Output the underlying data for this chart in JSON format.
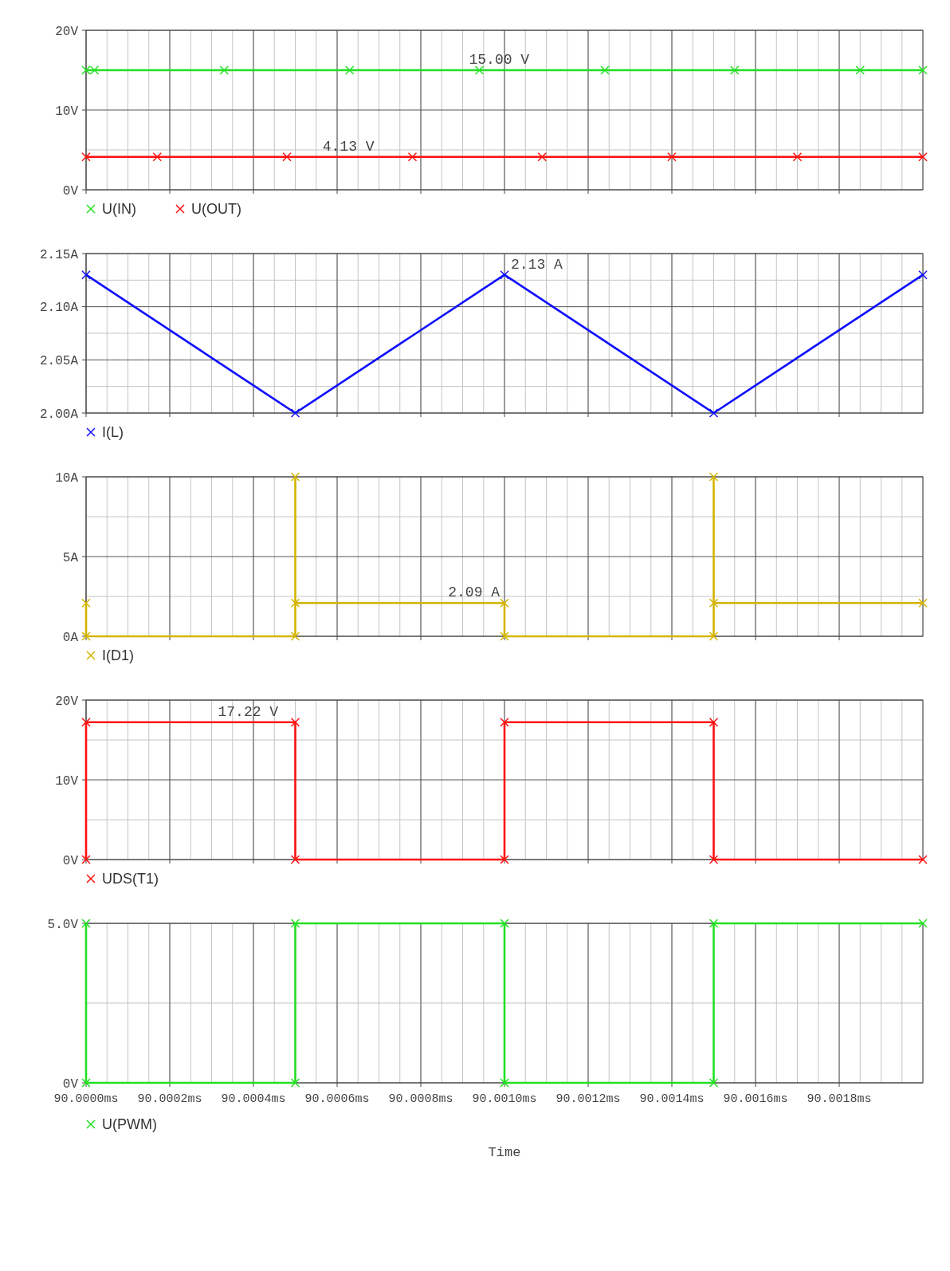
{
  "chart_data": [
    {
      "type": "line",
      "xlim": [
        90.0,
        90.002
      ],
      "xticks": [
        {
          "value": 90.0,
          "label": null
        },
        {
          "value": 90.0002,
          "label": null
        },
        {
          "value": 90.0004,
          "label": null
        },
        {
          "value": 90.0006,
          "label": null
        },
        {
          "value": 90.0008,
          "label": null
        },
        {
          "value": 90.001,
          "label": null
        },
        {
          "value": 90.0012,
          "label": null
        },
        {
          "value": 90.0014,
          "label": null
        },
        {
          "value": 90.0016,
          "label": null
        },
        {
          "value": 90.0018,
          "label": null
        }
      ],
      "ylim": [
        0,
        20
      ],
      "yticks": [
        {
          "value": 0,
          "label": "0V"
        },
        {
          "value": 10,
          "label": "10V"
        },
        {
          "value": 20,
          "label": "20V"
        }
      ],
      "tick_labels": "y",
      "grid": true,
      "legend": "bottom left",
      "marker": "cross",
      "series": [
        {
          "name": "U(IN)",
          "color": "#22e022",
          "x": [
            90.0,
            90.00002,
            90.00033,
            90.00063,
            90.00094,
            90.00124,
            90.00155,
            90.00185,
            90.002
          ],
          "values": [
            15,
            15,
            15,
            15,
            15,
            15,
            15,
            15,
            15
          ]
        },
        {
          "name": "U(OUT)",
          "color": "#ff1010",
          "x": [
            90.0,
            90.00017,
            90.00048,
            90.00078,
            90.00109,
            90.0014,
            90.0017,
            90.002
          ],
          "values": [
            4.13,
            4.13,
            4.13,
            4.13,
            4.13,
            4.13,
            4.13,
            4.13
          ]
        }
      ],
      "annotations": [
        {
          "text": "15.00 V",
          "x": 90.0009,
          "y": 15
        },
        {
          "text": "4.13 V",
          "x": 90.00055,
          "y": 4.13
        }
      ]
    },
    {
      "type": "line",
      "xlim": [
        90.0,
        90.002
      ],
      "xticks": [
        {
          "value": 90.0,
          "label": null
        },
        {
          "value": 90.0002,
          "label": null
        },
        {
          "value": 90.0004,
          "label": null
        },
        {
          "value": 90.0006,
          "label": null
        },
        {
          "value": 90.0008,
          "label": null
        },
        {
          "value": 90.001,
          "label": null
        },
        {
          "value": 90.0012,
          "label": null
        },
        {
          "value": 90.0014,
          "label": null
        },
        {
          "value": 90.0016,
          "label": null
        },
        {
          "value": 90.0018,
          "label": null
        }
      ],
      "ylim": [
        2.0,
        2.15
      ],
      "yticks": [
        {
          "value": 2.0,
          "label": "2.00A"
        },
        {
          "value": 2.05,
          "label": "2.05A"
        },
        {
          "value": 2.1,
          "label": "2.10A"
        },
        {
          "value": 2.15,
          "label": "2.15A"
        }
      ],
      "tick_labels": "y",
      "grid": true,
      "legend": "bottom left",
      "marker": "cross",
      "series": [
        {
          "name": "I(L)",
          "color": "#1010ff",
          "x": [
            90.0,
            90.0005,
            90.001,
            90.0015,
            90.002
          ],
          "values": [
            2.13,
            2.0,
            2.13,
            2.0,
            2.13
          ]
        }
      ],
      "annotations": [
        {
          "text": "2.13 A",
          "x": 90.001,
          "y": 2.13
        }
      ]
    },
    {
      "type": "line",
      "xlim": [
        90.0,
        90.002
      ],
      "xticks": [
        {
          "value": 90.0,
          "label": null
        },
        {
          "value": 90.0002,
          "label": null
        },
        {
          "value": 90.0004,
          "label": null
        },
        {
          "value": 90.0006,
          "label": null
        },
        {
          "value": 90.0008,
          "label": null
        },
        {
          "value": 90.001,
          "label": null
        },
        {
          "value": 90.0012,
          "label": null
        },
        {
          "value": 90.0014,
          "label": null
        },
        {
          "value": 90.0016,
          "label": null
        },
        {
          "value": 90.0018,
          "label": null
        }
      ],
      "ylim": [
        0,
        10
      ],
      "yticks": [
        {
          "value": 0,
          "label": "0A"
        },
        {
          "value": 5,
          "label": "5A"
        },
        {
          "value": 10,
          "label": "10A"
        }
      ],
      "tick_labels": "y",
      "grid": true,
      "legend": "bottom left",
      "marker": "cross",
      "series": [
        {
          "name": "I(D1)",
          "color": "#d4b400",
          "x": [
            90.0,
            90.0,
            90.0005,
            90.0005,
            90.0005,
            90.001,
            90.001,
            90.0015,
            90.0015,
            90.0015,
            90.002
          ],
          "values": [
            2.09,
            0,
            0,
            10,
            2.09,
            2.09,
            0,
            0,
            10,
            2.09,
            2.09
          ]
        }
      ],
      "annotations": [
        {
          "text": "2.09 A",
          "x": 90.00085,
          "y": 2.09
        }
      ]
    },
    {
      "type": "line",
      "xlim": [
        90.0,
        90.002
      ],
      "xticks": [
        {
          "value": 90.0,
          "label": null
        },
        {
          "value": 90.0002,
          "label": null
        },
        {
          "value": 90.0004,
          "label": null
        },
        {
          "value": 90.0006,
          "label": null
        },
        {
          "value": 90.0008,
          "label": null
        },
        {
          "value": 90.001,
          "label": null
        },
        {
          "value": 90.0012,
          "label": null
        },
        {
          "value": 90.0014,
          "label": null
        },
        {
          "value": 90.0016,
          "label": null
        },
        {
          "value": 90.0018,
          "label": null
        }
      ],
      "ylim": [
        0,
        20
      ],
      "yticks": [
        {
          "value": 0,
          "label": "0V"
        },
        {
          "value": 10,
          "label": "10V"
        },
        {
          "value": 20,
          "label": "20V"
        }
      ],
      "tick_labels": "y",
      "grid": true,
      "legend": "bottom left",
      "marker": "cross",
      "series": [
        {
          "name": "UDS(T1)",
          "color": "#ff1010",
          "x": [
            90.0,
            90.0,
            90.0005,
            90.0005,
            90.001,
            90.001,
            90.0015,
            90.0015,
            90.002
          ],
          "values": [
            0,
            17.22,
            17.22,
            0,
            0,
            17.22,
            17.22,
            0,
            0
          ]
        }
      ],
      "annotations": [
        {
          "text": "17.22 V",
          "x": 90.0003,
          "y": 17.22
        }
      ]
    },
    {
      "type": "line",
      "xlim": [
        90.0,
        90.002
      ],
      "xticks": [
        {
          "value": 90.0,
          "label": "90.0000ms"
        },
        {
          "value": 90.0002,
          "label": "90.0002ms"
        },
        {
          "value": 90.0004,
          "label": "90.0004ms"
        },
        {
          "value": 90.0006,
          "label": "90.0006ms"
        },
        {
          "value": 90.0008,
          "label": "90.0008ms"
        },
        {
          "value": 90.001,
          "label": "90.0010ms"
        },
        {
          "value": 90.0012,
          "label": "90.0012ms"
        },
        {
          "value": 90.0014,
          "label": "90.0014ms"
        },
        {
          "value": 90.0016,
          "label": "90.0016ms"
        },
        {
          "value": 90.0018,
          "label": "90.0018ms"
        }
      ],
      "ylim": [
        0,
        5
      ],
      "yticks": [
        {
          "value": 0,
          "label": "0V"
        },
        {
          "value": 5,
          "label": "5.0V"
        }
      ],
      "grid": true,
      "legend": "bottom left",
      "marker": "cross",
      "xlabel": "Time",
      "series": [
        {
          "name": "U(PWM)",
          "color": "#22e022",
          "x": [
            90.0,
            90.0,
            90.0005,
            90.0005,
            90.001,
            90.001,
            90.0015,
            90.0015,
            90.002
          ],
          "values": [
            5,
            0,
            0,
            5,
            5,
            0,
            0,
            5,
            5
          ]
        }
      ]
    }
  ]
}
